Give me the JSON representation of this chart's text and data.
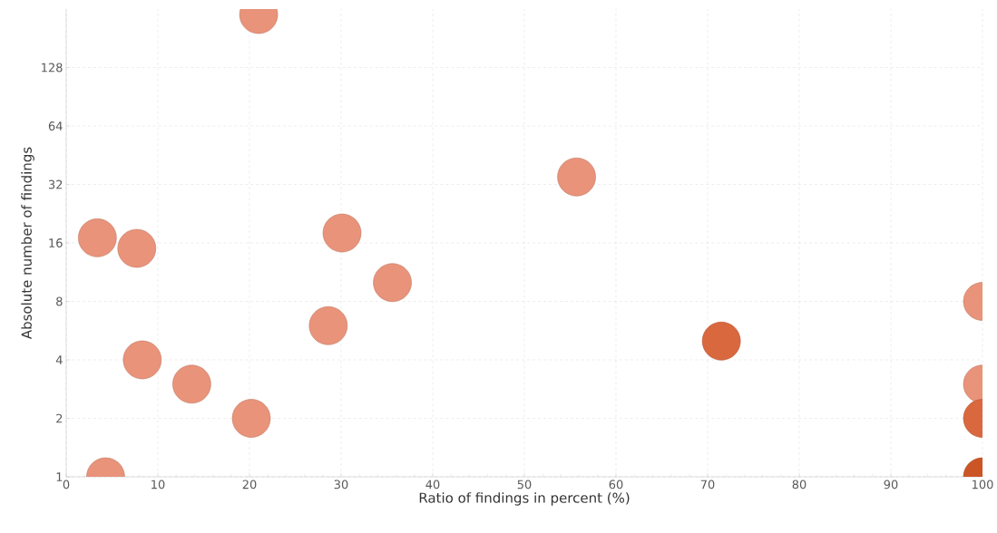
{
  "chart_data": {
    "type": "scatter",
    "xlabel": "Ratio of findings in percent (%)",
    "ylabel": "Absolute number of findings",
    "x": [
      21.0,
      55.7,
      3.4,
      7.7,
      30.1,
      35.6,
      28.6,
      100,
      71.5,
      8.3,
      13.7,
      100,
      20.2,
      100,
      4.3,
      100
    ],
    "values": [
      240,
      35,
      17,
      15,
      18,
      10,
      6,
      8,
      5,
      4,
      3,
      3,
      2,
      2,
      1,
      1
    ],
    "colors": [
      "#e8937a",
      "#e8937a",
      "#e8937a",
      "#e8937a",
      "#e8937a",
      "#e8937a",
      "#e8937a",
      "#e8937a",
      "#d9683f",
      "#e8937a",
      "#e8937a",
      "#e8937a",
      "#e8937a",
      "#d9683f",
      "#e8937a",
      "#cc5526"
    ],
    "xlim": [
      0,
      100
    ],
    "ylim": [
      1,
      256
    ],
    "xticks": [
      0,
      10,
      20,
      30,
      40,
      50,
      60,
      70,
      80,
      90,
      100
    ],
    "yticks": [
      1,
      2,
      4,
      8,
      16,
      32,
      64,
      128
    ],
    "log": "y",
    "grid": true,
    "marker": "circle"
  }
}
